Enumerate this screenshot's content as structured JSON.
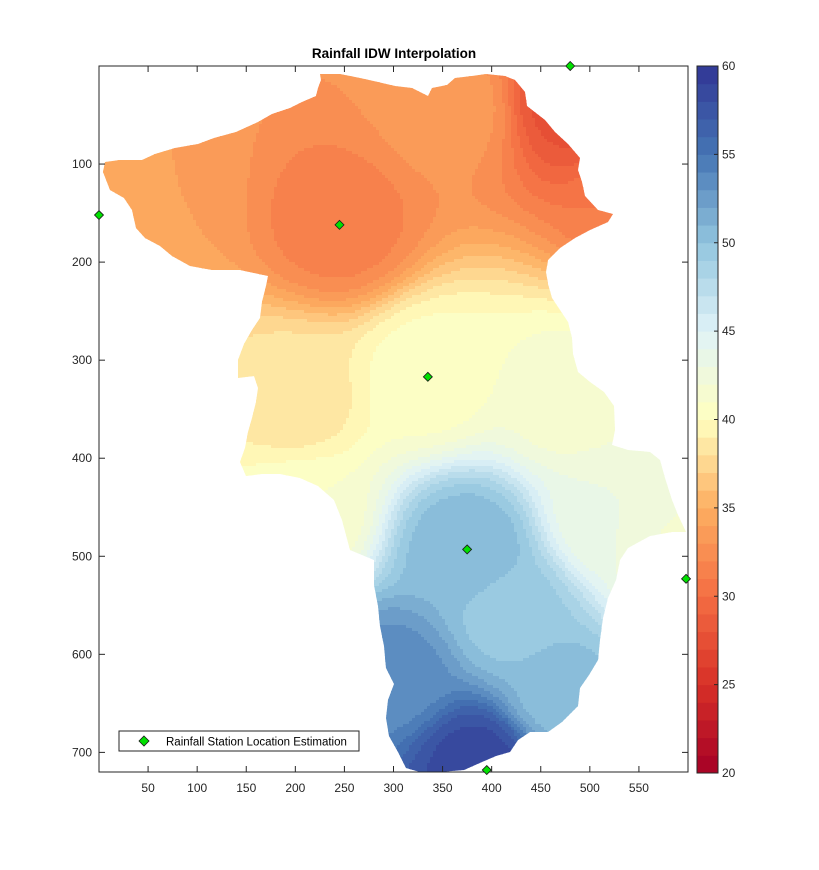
{
  "chart_data": {
    "type": "heatmap",
    "title": "Rainfall IDW Interpolation",
    "xlabel": "",
    "ylabel": "",
    "xlim": [
      0,
      600
    ],
    "ylim": [
      720,
      0
    ],
    "y_direction": "reversed",
    "x_ticks": [
      50,
      100,
      150,
      200,
      250,
      300,
      350,
      400,
      450,
      500,
      550
    ],
    "y_ticks": [
      100,
      200,
      300,
      400,
      500,
      600,
      700
    ],
    "grid": false,
    "colorbar": {
      "range": [
        20,
        60
      ],
      "ticks": [
        20,
        25,
        30,
        35,
        40,
        45,
        50,
        55,
        60
      ],
      "levels": 40,
      "colormap": "red-yellow-blue",
      "colormap_stops": [
        {
          "value": 20,
          "color": "#a50026"
        },
        {
          "value": 25,
          "color": "#d73027"
        },
        {
          "value": 30,
          "color": "#f46d43"
        },
        {
          "value": 35,
          "color": "#fdae61"
        },
        {
          "value": 40,
          "color": "#ffffbf"
        },
        {
          "value": 45,
          "color": "#e0f3f8"
        },
        {
          "value": 50,
          "color": "#92c5de"
        },
        {
          "value": 55,
          "color": "#4575b4"
        },
        {
          "value": 60,
          "color": "#313695"
        }
      ]
    },
    "stations": [
      {
        "x": 0,
        "y": 152
      },
      {
        "x": 245,
        "y": 162
      },
      {
        "x": 480,
        "y": 0
      },
      {
        "x": 335,
        "y": 317
      },
      {
        "x": 375,
        "y": 493
      },
      {
        "x": 598,
        "y": 523
      },
      {
        "x": 395,
        "y": 718
      }
    ],
    "legend": {
      "position": "bottom-left",
      "entries": [
        "Rainfall Station Location Estimation"
      ]
    },
    "marker_color": "#00e000"
  }
}
